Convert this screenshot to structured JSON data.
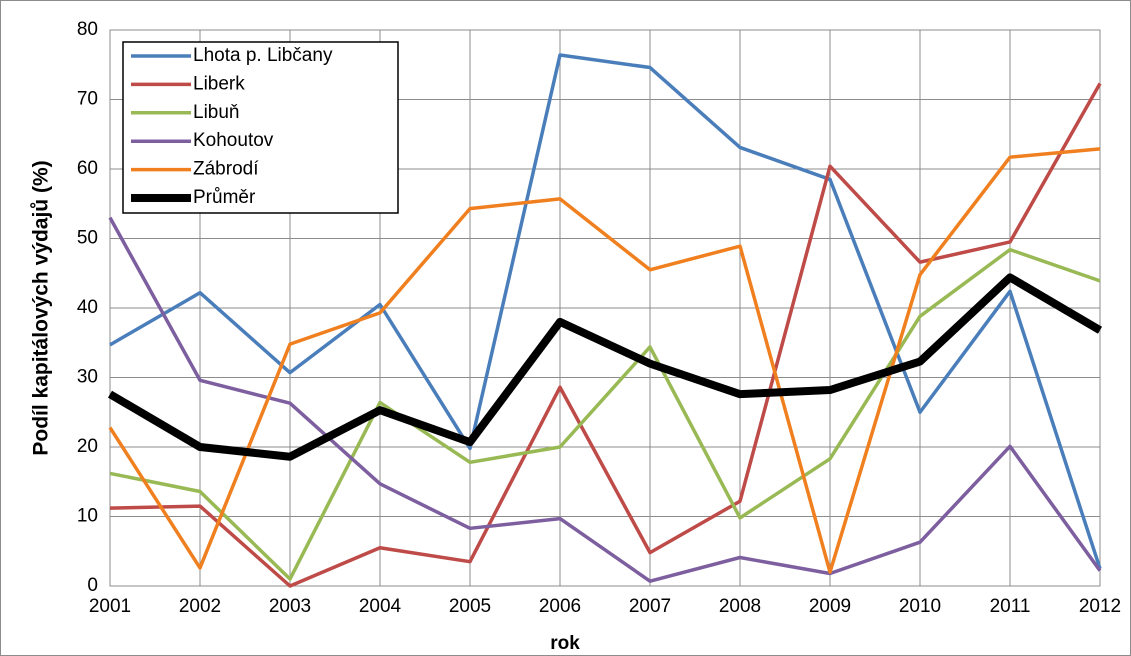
{
  "chart_data": {
    "type": "line",
    "x_label": "rok",
    "y_label": "Podíl kapitálových výdajů (%)",
    "x": [
      2001,
      2002,
      2003,
      2004,
      2005,
      2006,
      2007,
      2008,
      2009,
      2010,
      2011,
      2012
    ],
    "xlim": [
      2001,
      2012
    ],
    "xticks": [
      2001,
      2002,
      2003,
      2004,
      2005,
      2006,
      2007,
      2008,
      2009,
      2010,
      2011,
      2012
    ],
    "ylim": [
      0,
      80
    ],
    "yticks": [
      0,
      10,
      20,
      30,
      40,
      50,
      60,
      70,
      80
    ],
    "grid": true,
    "legend": "upper left",
    "series": [
      {
        "name": "Lhota p. Libčany",
        "color": "#4a7ebb",
        "values": [
          34.7,
          42.2,
          30.7,
          40.5,
          19.8,
          76.4,
          74.6,
          63.1,
          58.5,
          25.0,
          42.4,
          2.5
        ]
      },
      {
        "name": "Liberk",
        "color": "#be4b48",
        "values": [
          11.2,
          11.5,
          0,
          5.5,
          3.5,
          28.6,
          4.8,
          12.2,
          60.4,
          46.6,
          49.5,
          72.3
        ]
      },
      {
        "name": "Libuň",
        "color": "#98b954",
        "values": [
          16.2,
          13.6,
          1.0,
          26.4,
          17.8,
          20.0,
          34.4,
          9.8,
          18.3,
          38.8,
          48.4,
          43.9
        ]
      },
      {
        "name": "Kohoutov",
        "color": "#7d5fa0",
        "values": [
          53.0,
          29.6,
          26.3,
          14.7,
          8.3,
          9.7,
          0.7,
          4.1,
          1.8,
          6.3,
          20.1,
          2.2
        ]
      },
      {
        "name": "Zábrodí",
        "color": "#f0801f",
        "values": [
          22.8,
          2.6,
          34.8,
          39.3,
          54.3,
          55.7,
          45.5,
          48.9,
          2.0,
          44.8,
          61.7,
          62.9
        ]
      },
      {
        "name": "Průměr",
        "color": "#000000",
        "values": [
          27.6,
          20.0,
          18.6,
          25.3,
          20.7,
          38.0,
          32.0,
          27.6,
          28.2,
          32.3,
          44.4,
          36.8
        ]
      }
    ]
  }
}
